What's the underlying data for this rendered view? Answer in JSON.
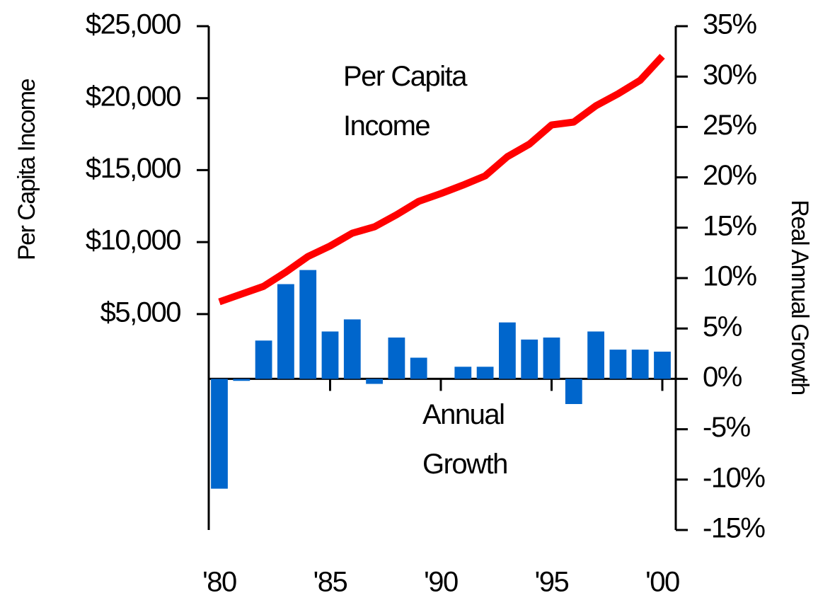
{
  "chart_data": {
    "type": "bar_line",
    "x": [
      1980,
      1981,
      1982,
      1983,
      1984,
      1985,
      1986,
      1987,
      1988,
      1989,
      1990,
      1991,
      1992,
      1993,
      1994,
      1995,
      1996,
      1997,
      1998,
      1999,
      2000
    ],
    "xticks": [
      {
        "value": 1980,
        "label": "'80"
      },
      {
        "value": 1985,
        "label": "'85"
      },
      {
        "value": 1990,
        "label": "'90"
      },
      {
        "value": 1995,
        "label": "'95"
      },
      {
        "value": 2000,
        "label": "'00"
      }
    ],
    "xlim": [
      1979.6,
      2000.6
    ],
    "ylabel": "Per Capita Income",
    "y2label": "Real Annual Growth",
    "ylim": [
      -10000,
      25000
    ],
    "yticks": [
      {
        "value": 5000,
        "label": "$5,000"
      },
      {
        "value": 10000,
        "label": "$10,000"
      },
      {
        "value": 15000,
        "label": "$15,000"
      },
      {
        "value": 20000,
        "label": "$20,000"
      },
      {
        "value": 25000,
        "label": "$25,000"
      }
    ],
    "y2lim": [
      -15,
      35
    ],
    "y2ticks": [
      {
        "value": -15,
        "label": "-15%"
      },
      {
        "value": -10,
        "label": "-10%"
      },
      {
        "value": -5,
        "label": "-5%"
      },
      {
        "value": 0,
        "label": "0%"
      },
      {
        "value": 5,
        "label": "5%"
      },
      {
        "value": 10,
        "label": "10%"
      },
      {
        "value": 15,
        "label": "15%"
      },
      {
        "value": 20,
        "label": "20%"
      },
      {
        "value": 25,
        "label": "25%"
      },
      {
        "value": 30,
        "label": "30%"
      },
      {
        "value": 35,
        "label": "35%"
      }
    ],
    "series": [
      {
        "name": "Per Capita Income",
        "type": "line",
        "color": "#ff0000",
        "values": [
          5850,
          6390,
          6930,
          7915,
          9000,
          9730,
          10620,
          11060,
          11900,
          12830,
          13370,
          13960,
          14600,
          15930,
          16810,
          18140,
          18340,
          19470,
          20300,
          21240,
          22910
        ]
      },
      {
        "name": "Annual Growth",
        "type": "bar",
        "axis": "y2",
        "color": "#0066cc",
        "values": [
          -10.9,
          -0.2,
          3.8,
          9.4,
          10.8,
          4.7,
          5.9,
          -0.5,
          4.1,
          2.1,
          0,
          1.2,
          1.2,
          5.6,
          3.9,
          4.1,
          -2.5,
          4.7,
          2.9,
          2.9,
          2.7
        ]
      }
    ]
  }
}
